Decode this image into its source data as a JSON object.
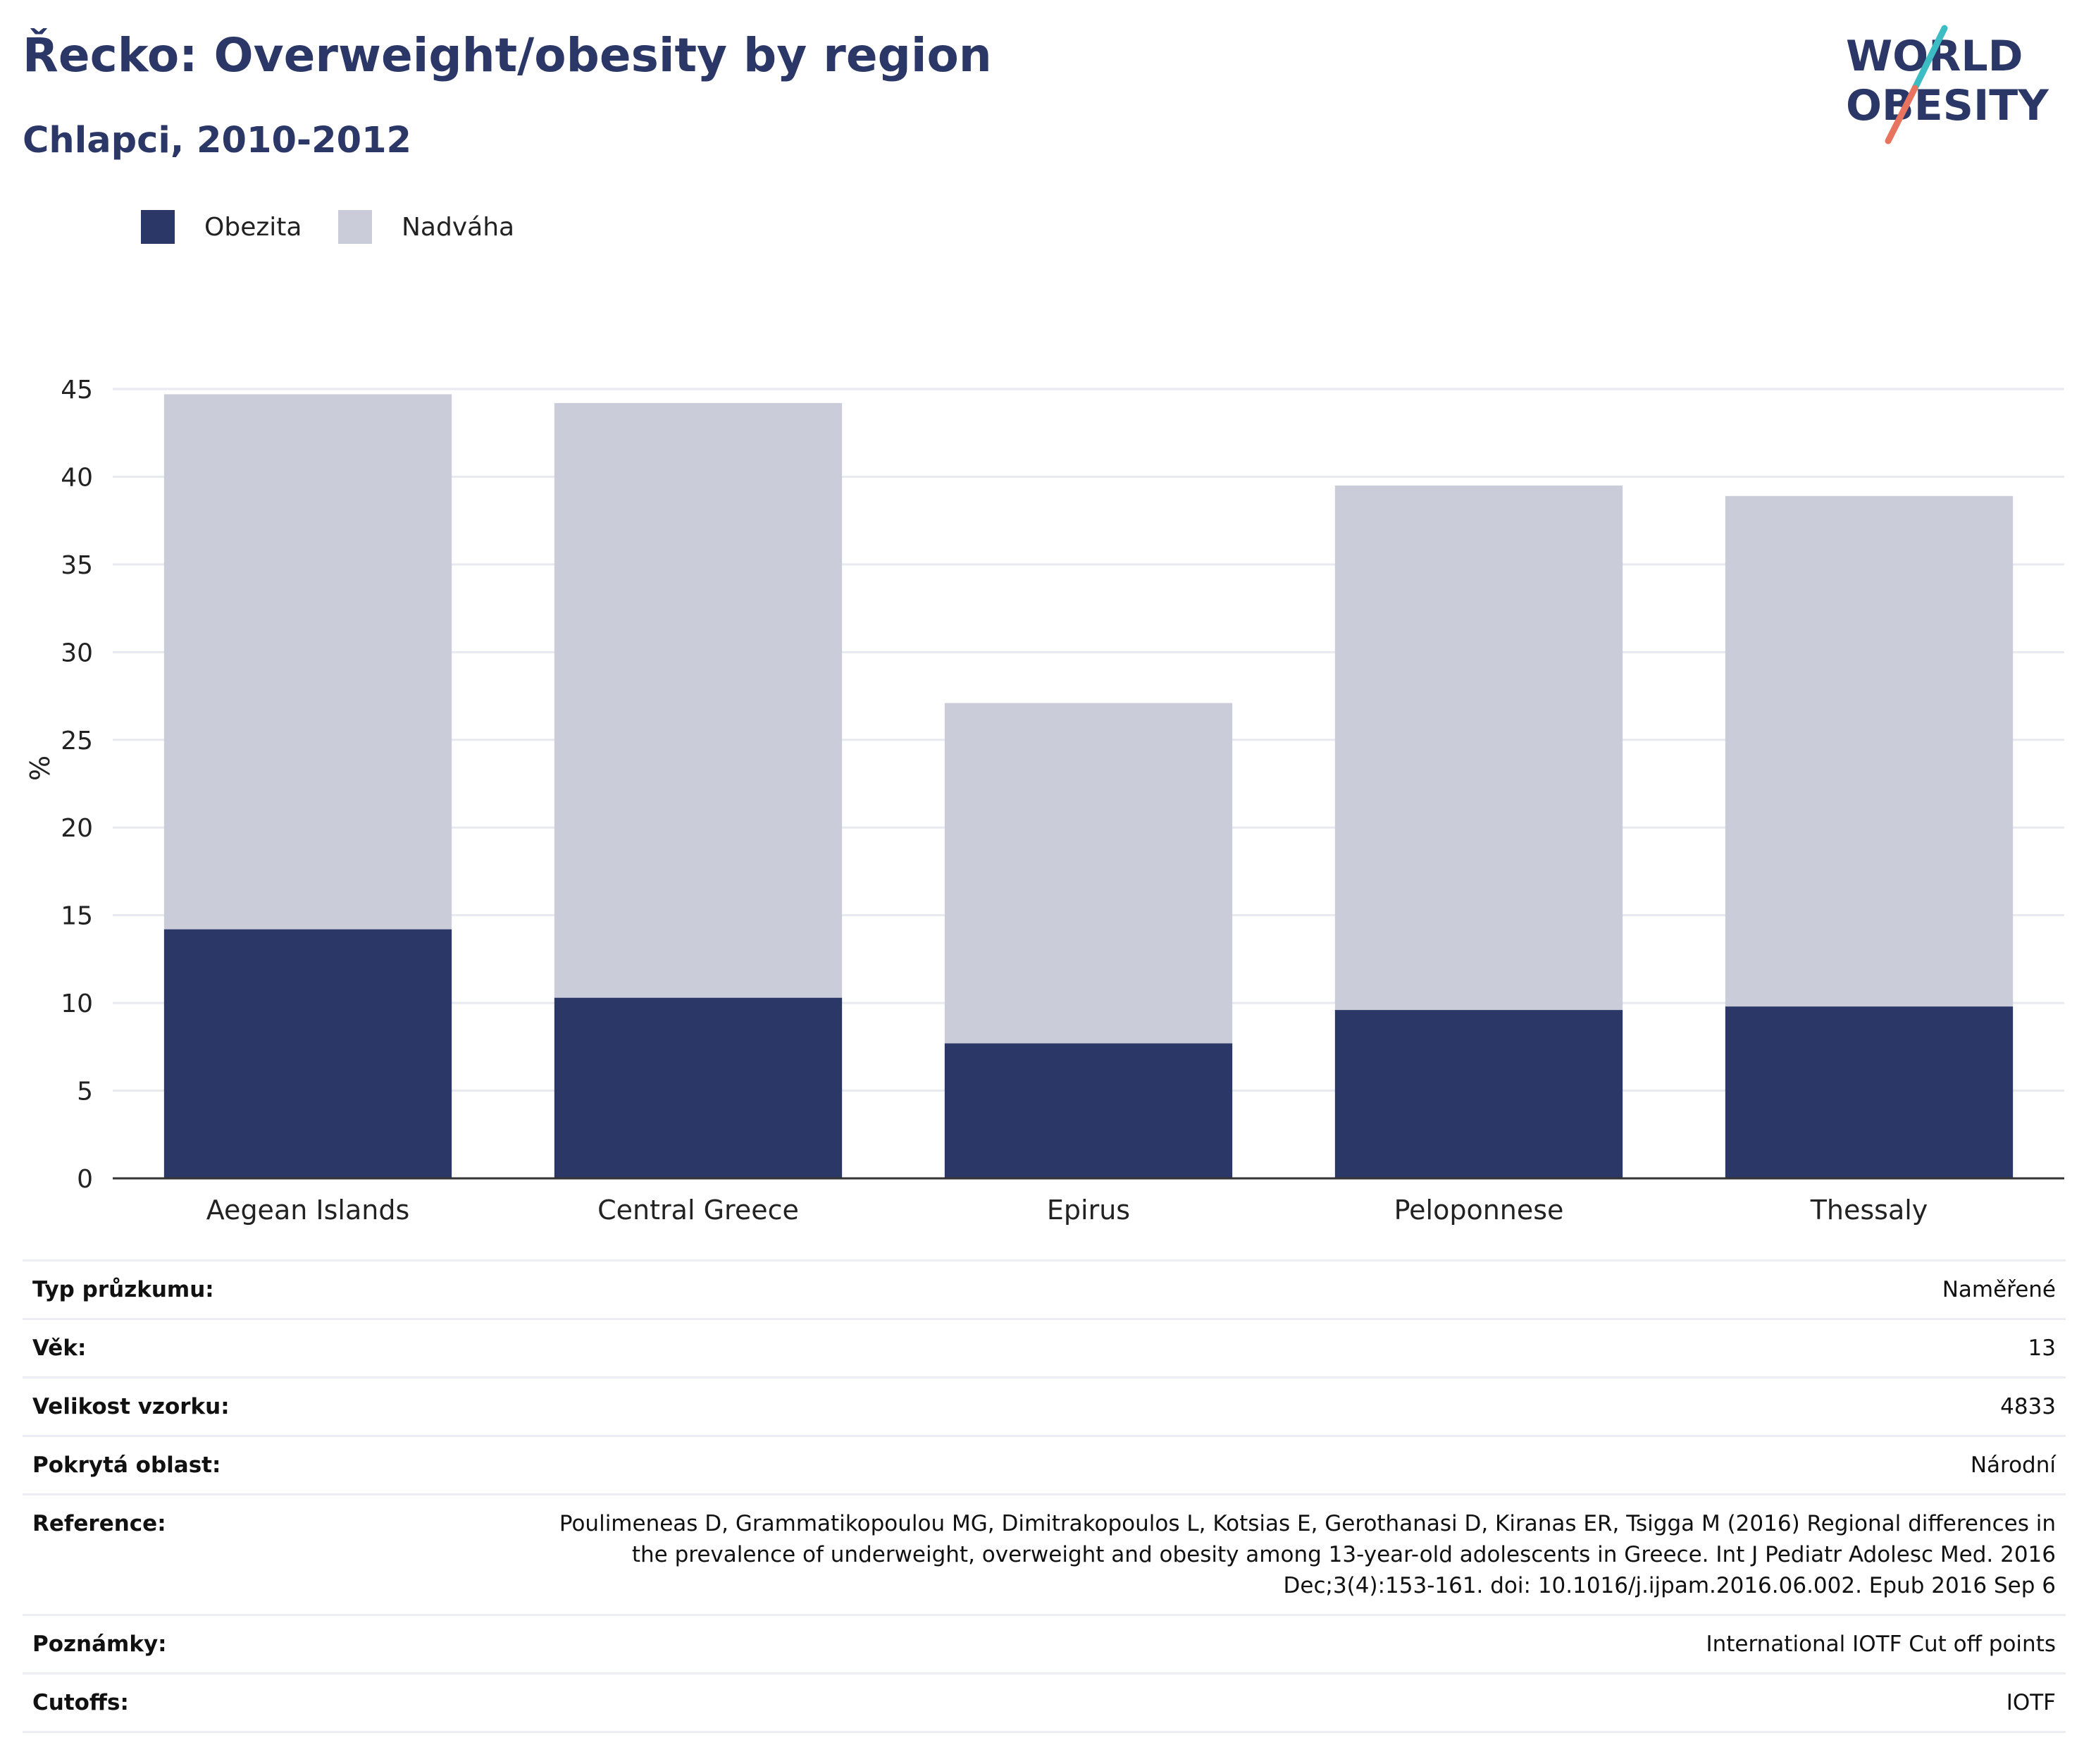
{
  "header": {
    "title": "Řecko: Overweight/obesity by region",
    "subtitle": "Chlapci, 2010-2012"
  },
  "logo": {
    "line1": "WORLD",
    "line2": "OBESITY",
    "colors": {
      "text": "#2b3767",
      "slash_teal": "#3cbcc3",
      "slash_coral": "#e8735f"
    }
  },
  "colors": {
    "obezita": "#2b3767",
    "nadvaha": "#cacdd9",
    "grid": "#e8eaf0",
    "axis": "#333333",
    "title": "#2b3767"
  },
  "chart_data": {
    "type": "bar",
    "stacked": true,
    "categories": [
      "Aegean Islands",
      "Central Greece",
      "Epirus",
      "Peloponnese",
      "Thessaly"
    ],
    "series": [
      {
        "name": "Obezita",
        "values": [
          14.2,
          10.3,
          7.7,
          9.6,
          9.8
        ]
      },
      {
        "name": "Nadváha",
        "values": [
          30.5,
          33.9,
          19.4,
          29.9,
          29.1
        ]
      }
    ],
    "title": "Řecko: Overweight/obesity by region",
    "subtitle": "Chlapci, 2010-2012",
    "xlabel": "",
    "ylabel": "%",
    "ylim": [
      0,
      45
    ],
    "yticks": [
      "0",
      "5",
      "10",
      "15",
      "20",
      "25",
      "30",
      "35",
      "40",
      "45"
    ],
    "grid": true,
    "legend_position": "top-left"
  },
  "legend": {
    "items": [
      {
        "label": "Obezita",
        "color": "#2b3767"
      },
      {
        "label": "Nadváha",
        "color": "#cacdd9"
      }
    ]
  },
  "meta": {
    "rows": [
      {
        "key": "Typ průzkumu:",
        "value": "Naměřené"
      },
      {
        "key": "Věk:",
        "value": "13"
      },
      {
        "key": "Velikost vzorku:",
        "value": "4833"
      },
      {
        "key": "Pokrytá oblast:",
        "value": "Národní"
      },
      {
        "key": "Reference:",
        "value": "Poulimeneas D, Grammatikopoulou MG, Dimitrakopoulos L, Kotsias E, Gerothanasi D, Kiranas ER, Tsigga M (2016) Regional differences in the prevalence of underweight, overweight and obesity among 13-year-old adolescents in Greece. Int J Pediatr Adolesc Med. 2016 Dec;3(4):153-161. doi: 10.1016/j.ijpam.2016.06.002. Epub 2016 Sep 6"
      },
      {
        "key": "Poznámky:",
        "value": "International IOTF Cut off points"
      },
      {
        "key": "Cutoffs:",
        "value": "IOTF"
      }
    ]
  }
}
